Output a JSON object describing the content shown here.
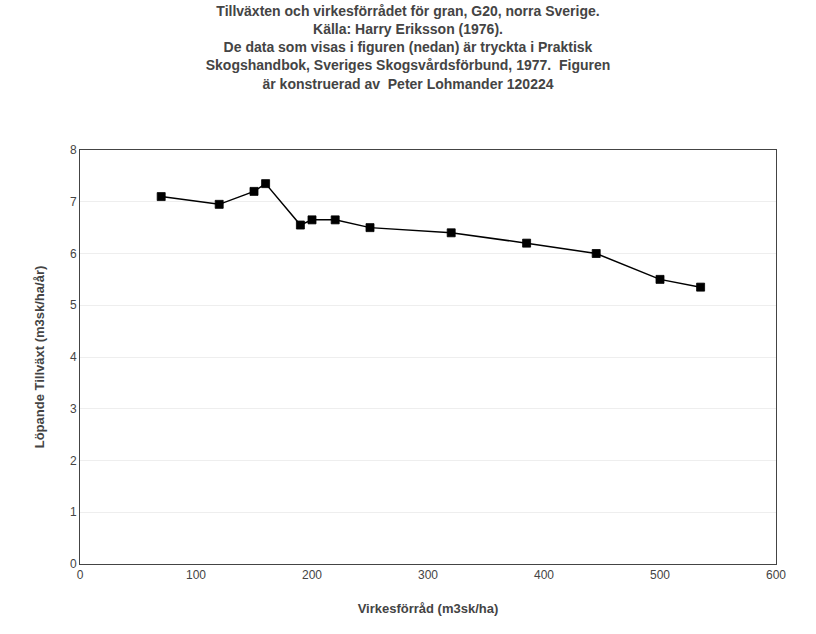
{
  "chart_data": {
    "type": "line",
    "title": "Tillväxten och virkesförrådet för gran, G20, norra Sverige.\nKälla: Harry Eriksson (1976).\nDe data som visas i figuren (nedan) är tryckta i Praktisk\nSkogshandbok, Sveriges Skogsvårdsförbund, 1977.  Figuren\när konstruerad av  Peter Lohmander 120224",
    "x": [
      70,
      120,
      150,
      160,
      190,
      200,
      220,
      250,
      320,
      385,
      445,
      500,
      535
    ],
    "values": [
      7.1,
      6.95,
      7.2,
      7.35,
      6.55,
      6.65,
      6.65,
      6.5,
      6.4,
      6.2,
      6.0,
      5.5,
      5.35
    ],
    "color": "#000000",
    "marker": "square",
    "xlabel": "Virkesförråd (m3sk/ha)",
    "ylabel": "Löpande Tillväxt (m3sk/ha/år)",
    "xlim": [
      0,
      600
    ],
    "ylim": [
      0,
      8
    ],
    "xticks": [
      0,
      100,
      200,
      300,
      400,
      500,
      600
    ],
    "yticks": [
      0,
      1,
      2,
      3,
      4,
      5,
      6,
      7,
      8
    ],
    "grid": "y"
  }
}
